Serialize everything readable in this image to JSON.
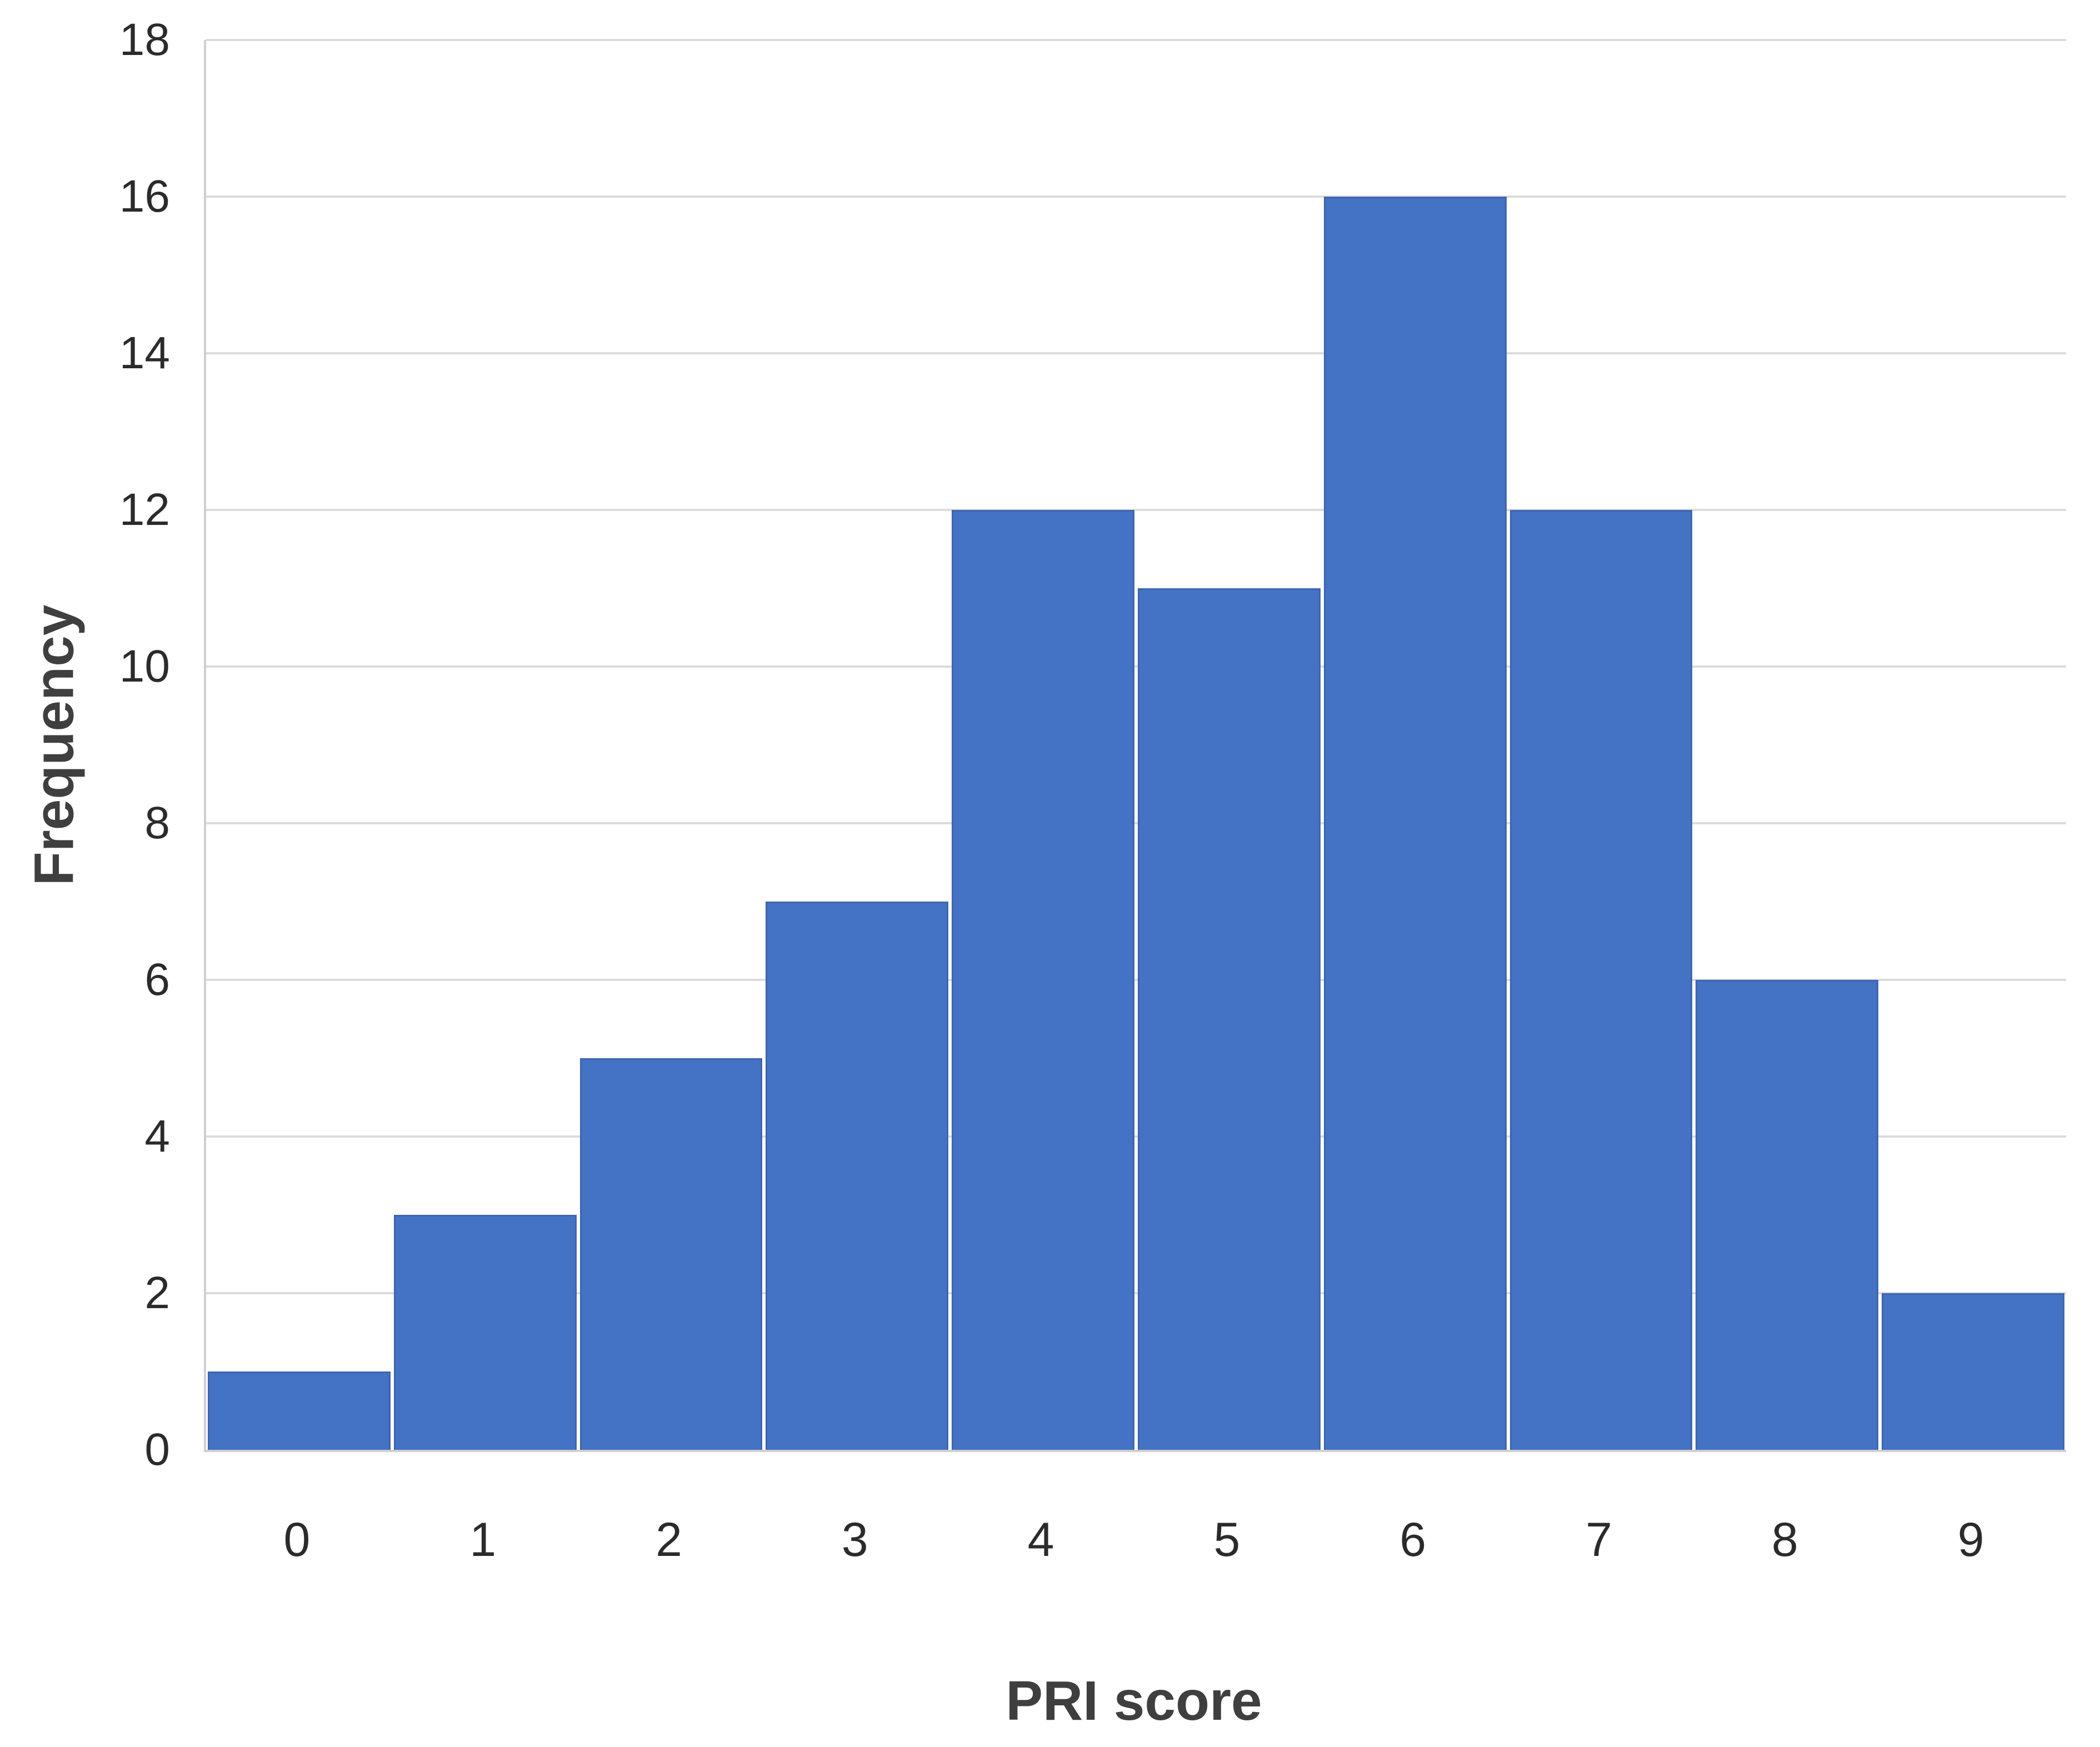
{
  "chart_data": {
    "type": "bar",
    "subtype": "histogram",
    "title": "",
    "categories": [
      "0",
      "1",
      "2",
      "3",
      "4",
      "5",
      "6",
      "7",
      "8",
      "9"
    ],
    "values": [
      1,
      3,
      5,
      7,
      12,
      11,
      16,
      12,
      6,
      2
    ],
    "xlabel": "PRI score",
    "ylabel": "Frequency",
    "ylim": [
      0,
      18
    ],
    "y_ticks": [
      0,
      2,
      4,
      6,
      8,
      10,
      12,
      14,
      16,
      18
    ],
    "grid": "horizontal",
    "legend": "none",
    "colors": {
      "bar": "#4472C4",
      "bar_edge": "#3e66ae",
      "gridline": "#dbdbdb",
      "axis_line": "#cfcfcf",
      "tick_label": "#2b2b2b",
      "axis_title": "#3f3f3f",
      "background": "#ffffff"
    }
  }
}
